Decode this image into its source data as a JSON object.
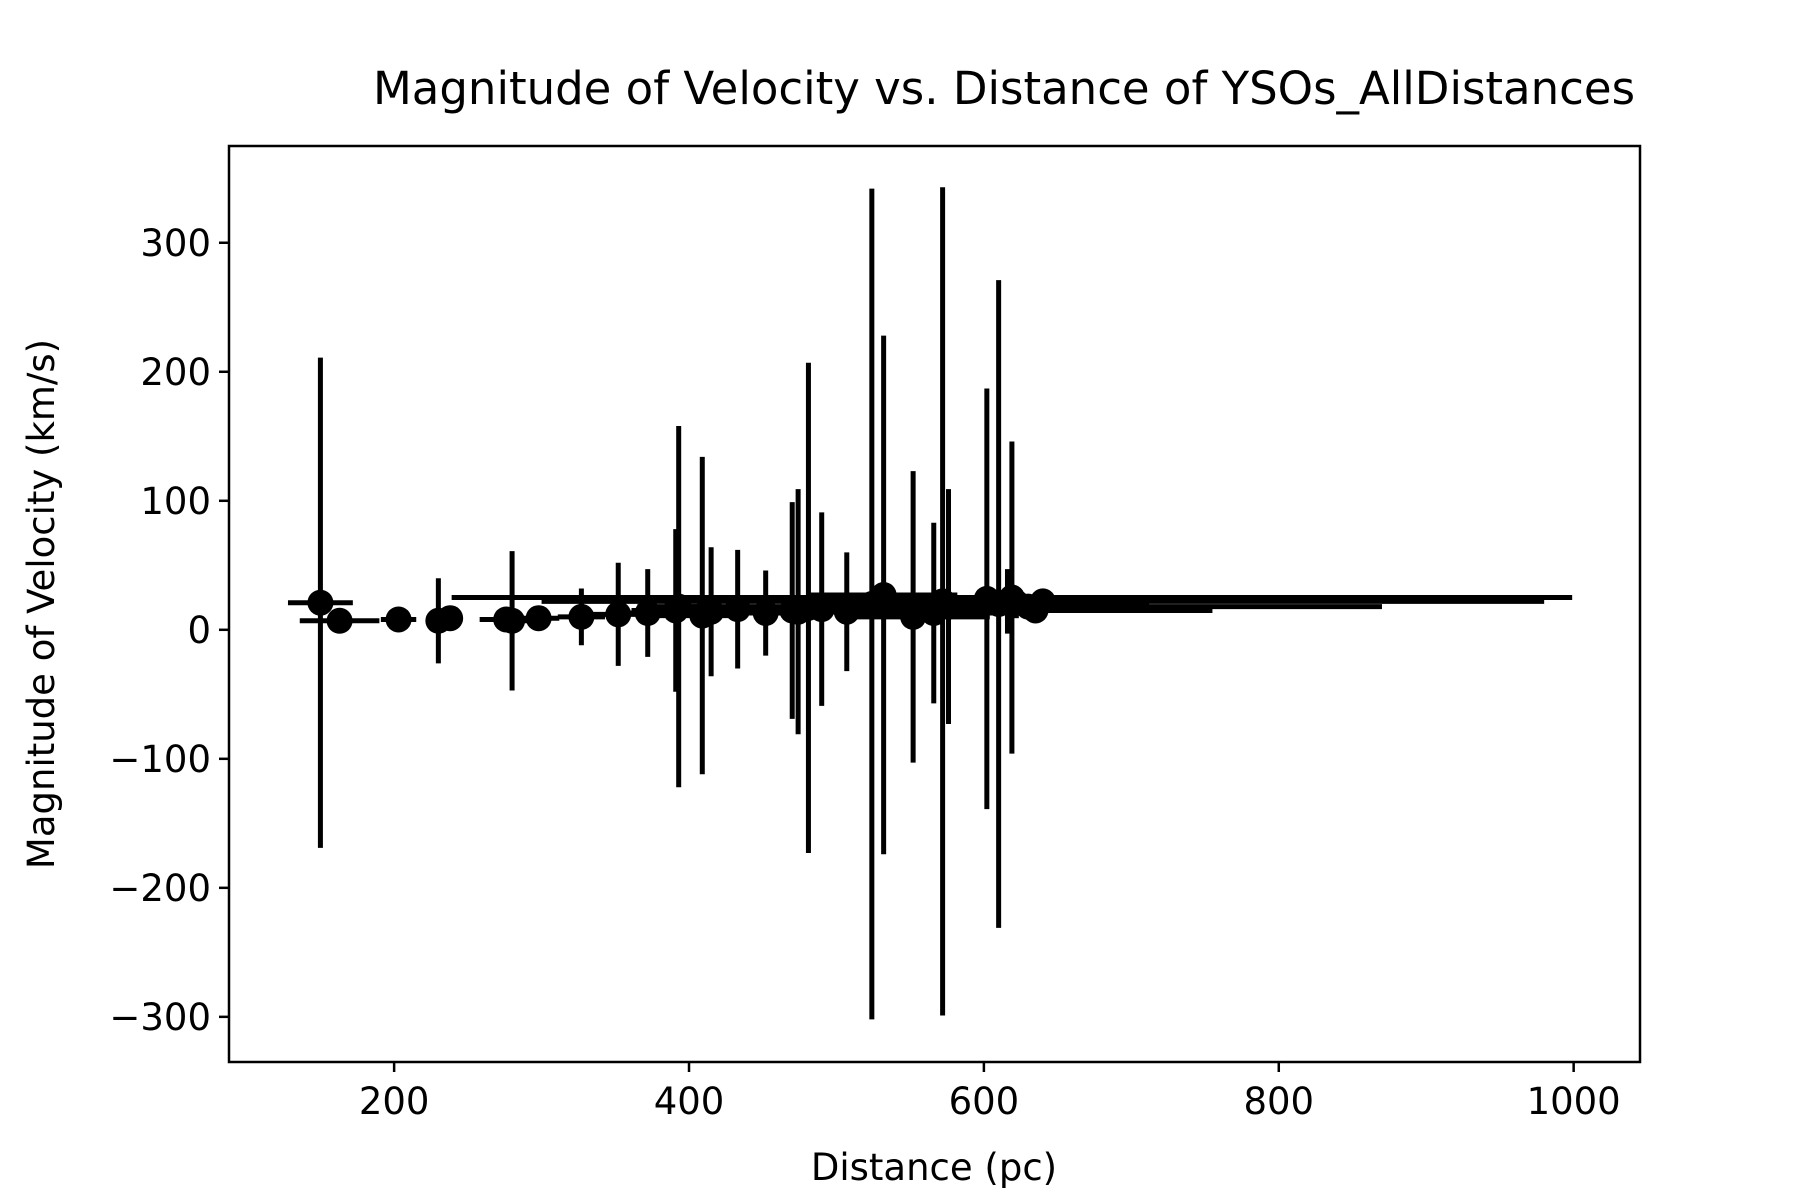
{
  "chart_data": {
    "type": "scatter",
    "title": "Magnitude of Velocity vs. Distance of YSOs_AllDistances",
    "xlabel": "Distance (pc)",
    "ylabel": "Magnitude of Velocity (km/s)",
    "xlim": [
      88,
      1045
    ],
    "ylim": [
      -335,
      375
    ],
    "xticks": [
      200,
      400,
      600,
      800,
      1000
    ],
    "yticks": [
      -300,
      -200,
      -100,
      0,
      100,
      200,
      300
    ],
    "xtick_labels": [
      "200",
      "400",
      "600",
      "800",
      "1000"
    ],
    "ytick_labels": [
      "−300",
      "−200",
      "−100",
      "0",
      "100",
      "200",
      "300"
    ],
    "grid": false,
    "legend": "none",
    "marker": "circle",
    "colors": {
      "marker": "#000000",
      "errorbar": "#000000",
      "axes": "#000000",
      "background": "#ffffff"
    },
    "points": [
      {
        "x": 150,
        "y": 21,
        "xerr": 22,
        "yerr_up": 190,
        "yerr_down": 190
      },
      {
        "x": 163,
        "y": 7,
        "xerr": 27,
        "yerr_up": 3,
        "yerr_down": 3
      },
      {
        "x": 203,
        "y": 8,
        "xerr": 12,
        "yerr_up": 4,
        "yerr_down": 4
      },
      {
        "x": 230,
        "y": 7,
        "xerr": 6,
        "yerr_up": 33,
        "yerr_down": 33
      },
      {
        "x": 238,
        "y": 9,
        "xerr": 8,
        "yerr_up": 8,
        "yerr_down": 8
      },
      {
        "x": 276,
        "y": 8,
        "xerr": 18,
        "yerr_up": 4,
        "yerr_down": 4
      },
      {
        "x": 280,
        "y": 7,
        "xerr": 12,
        "yerr_up": 54,
        "yerr_down": 54
      },
      {
        "x": 298,
        "y": 9,
        "xerr": 14,
        "yerr_up": 6,
        "yerr_down": 6
      },
      {
        "x": 327,
        "y": 10,
        "xerr": 16,
        "yerr_up": 22,
        "yerr_down": 22
      },
      {
        "x": 352,
        "y": 12,
        "xerr": 24,
        "yerr_up": 40,
        "yerr_down": 40
      },
      {
        "x": 372,
        "y": 13,
        "xerr": 26,
        "yerr_up": 34,
        "yerr_down": 34
      },
      {
        "x": 391,
        "y": 15,
        "xerr": 30,
        "yerr_up": 63,
        "yerr_down": 63
      },
      {
        "x": 393,
        "y": 18,
        "xerr": 28,
        "yerr_up": 140,
        "yerr_down": 140
      },
      {
        "x": 409,
        "y": 11,
        "xerr": 30,
        "yerr_up": 123,
        "yerr_down": 123
      },
      {
        "x": 415,
        "y": 14,
        "xerr": 32,
        "yerr_up": 50,
        "yerr_down": 50
      },
      {
        "x": 433,
        "y": 16,
        "xerr": 34,
        "yerr_up": 46,
        "yerr_down": 46
      },
      {
        "x": 452,
        "y": 13,
        "xerr": 36,
        "yerr_up": 33,
        "yerr_down": 33
      },
      {
        "x": 470,
        "y": 15,
        "xerr": 40,
        "yerr_up": 84,
        "yerr_down": 84
      },
      {
        "x": 474,
        "y": 14,
        "xerr": 38,
        "yerr_up": 95,
        "yerr_down": 95
      },
      {
        "x": 481,
        "y": 17,
        "xerr": 42,
        "yerr_up": 190,
        "yerr_down": 190
      },
      {
        "x": 490,
        "y": 16,
        "xerr": 40,
        "yerr_up": 75,
        "yerr_down": 75
      },
      {
        "x": 507,
        "y": 14,
        "xerr": 44,
        "yerr_up": 46,
        "yerr_down": 46
      },
      {
        "x": 524,
        "y": 20,
        "xerr": 48,
        "yerr_up": 322,
        "yerr_down": 322
      },
      {
        "x": 532,
        "y": 27,
        "xerr": 50,
        "yerr_up": 201,
        "yerr_down": 201
      },
      {
        "x": 552,
        "y": 10,
        "xerr": 52,
        "yerr_up": 113,
        "yerr_down": 113
      },
      {
        "x": 566,
        "y": 13,
        "xerr": 54,
        "yerr_up": 70,
        "yerr_down": 70
      },
      {
        "x": 572,
        "y": 22,
        "xerr": 56,
        "yerr_up": 321,
        "yerr_down": 321
      },
      {
        "x": 576,
        "y": 18,
        "xerr": 58,
        "yerr_up": 91,
        "yerr_down": 91
      },
      {
        "x": 602,
        "y": 24,
        "xerr": 62,
        "yerr_up": 163,
        "yerr_down": 163
      },
      {
        "x": 610,
        "y": 20,
        "xerr": 66,
        "yerr_up": 251,
        "yerr_down": 251
      },
      {
        "x": 616,
        "y": 22,
        "xerr": 68,
        "yerr_up": 25,
        "yerr_down": 25
      },
      {
        "x": 619,
        "y": 25,
        "xerr": 380,
        "yerr_up": 121,
        "yerr_down": 121
      },
      {
        "x": 622,
        "y": 21,
        "xerr": 90,
        "yerr_up": 12,
        "yerr_down": 12
      },
      {
        "x": 630,
        "y": 18,
        "xerr": 240,
        "yerr_up": 8,
        "yerr_down": 8
      },
      {
        "x": 640,
        "y": 22,
        "xerr": 340,
        "yerr_up": 6,
        "yerr_down": 6
      },
      {
        "x": 635,
        "y": 15,
        "xerr": 120,
        "yerr_up": 5,
        "yerr_down": 5
      }
    ]
  }
}
